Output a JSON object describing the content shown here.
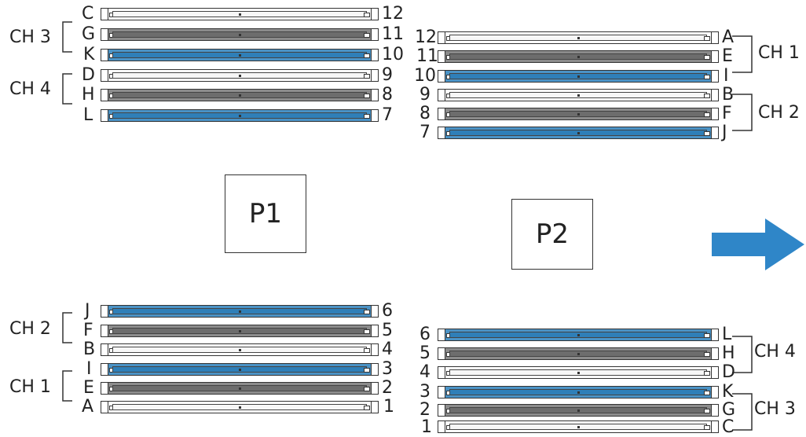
{
  "processors": [
    {
      "label": "P1"
    },
    {
      "label": "P2"
    }
  ],
  "channels": {
    "p1_top": [
      "CH 3",
      "CH 4"
    ],
    "p2_top": [
      "CH 1",
      "CH 2"
    ],
    "p1_bottom": [
      "CH 2",
      "CH 1"
    ],
    "p2_bottom": [
      "CH 4",
      "CH 3"
    ]
  },
  "slot_groups": [
    {
      "group": "p1_top",
      "slots": [
        {
          "letter": "C",
          "number": "12",
          "color": "white"
        },
        {
          "letter": "G",
          "number": "11",
          "color": "gray"
        },
        {
          "letter": "K",
          "number": "10",
          "color": "blue"
        },
        {
          "letter": "D",
          "number": "9",
          "color": "white"
        },
        {
          "letter": "H",
          "number": "8",
          "color": "gray"
        },
        {
          "letter": "L",
          "number": "7",
          "color": "blue"
        }
      ]
    },
    {
      "group": "p2_top",
      "slots": [
        {
          "number": "12",
          "letter": "A",
          "color": "white"
        },
        {
          "number": "11",
          "letter": "E",
          "color": "gray"
        },
        {
          "number": "10",
          "letter": "I",
          "color": "blue"
        },
        {
          "number": "9",
          "letter": "B",
          "color": "white"
        },
        {
          "number": "8",
          "letter": "F",
          "color": "gray"
        },
        {
          "number": "7",
          "letter": "J",
          "color": "blue"
        }
      ]
    },
    {
      "group": "p1_bottom",
      "slots": [
        {
          "letter": "J",
          "number": "6",
          "color": "blue"
        },
        {
          "letter": "F",
          "number": "5",
          "color": "gray"
        },
        {
          "letter": "B",
          "number": "4",
          "color": "white"
        },
        {
          "letter": "I",
          "number": "3",
          "color": "blue"
        },
        {
          "letter": "E",
          "number": "2",
          "color": "gray"
        },
        {
          "letter": "A",
          "number": "1",
          "color": "white"
        }
      ]
    },
    {
      "group": "p2_bottom",
      "slots": [
        {
          "number": "6",
          "letter": "L",
          "color": "blue"
        },
        {
          "number": "5",
          "letter": "H",
          "color": "gray"
        },
        {
          "number": "4",
          "letter": "D",
          "color": "white"
        },
        {
          "number": "3",
          "letter": "K",
          "color": "blue"
        },
        {
          "number": "2",
          "letter": "G",
          "color": "gray"
        },
        {
          "number": "1",
          "letter": "C",
          "color": "white"
        }
      ]
    }
  ],
  "colors": {
    "white": "#ffffff",
    "gray": "#8c8c8c",
    "blue": "#4b93c6",
    "arrow": "#2f86c8"
  },
  "icons": {
    "direction": "right-arrow-icon"
  }
}
